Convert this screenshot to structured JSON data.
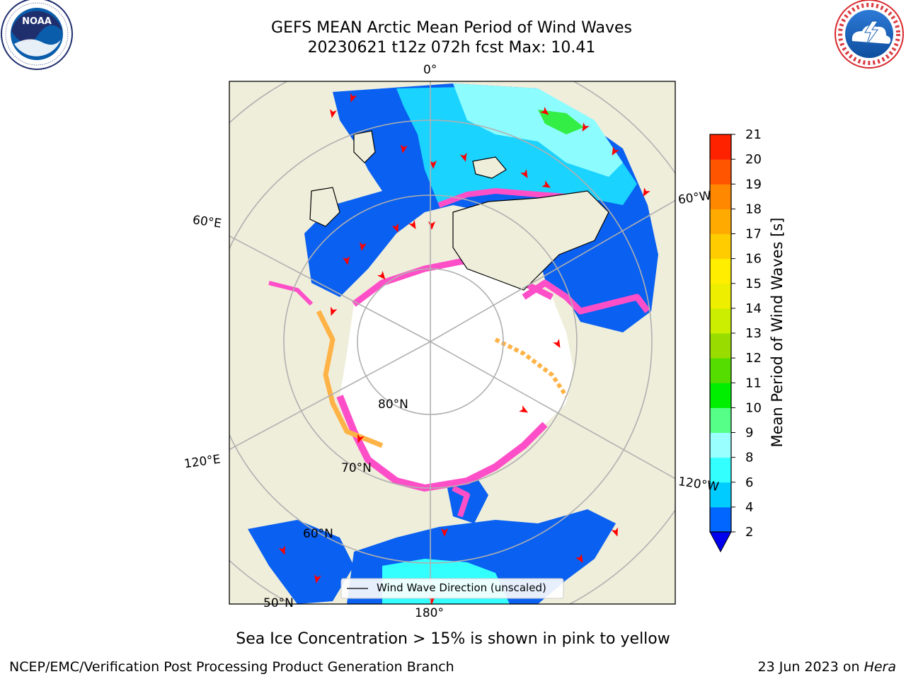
{
  "header": {
    "title_line1": "GEFS MEAN Arctic Mean Period of Wind Waves",
    "title_line2": "20230621 t12z 072h fcst   Max: 10.41"
  },
  "logos": {
    "left": {
      "name": "NOAA",
      "ring_text": "NATIONAL OCEANIC AND ATMOSPHERIC ADMINISTRATION · U.S. DEPARTMENT OF COMMERCE",
      "colors": {
        "ring": "#ffffff",
        "field": "#0a5dab",
        "badge": "#1f2f6e"
      }
    },
    "right": {
      "name": "NATIONAL WEATHER SERVICE",
      "colors": {
        "ring": "#d7262b",
        "field": "#1b5fb0",
        "cloud": "#ffffff"
      }
    }
  },
  "map": {
    "projection": "north-polar-stereographic",
    "colors": {
      "land": "#efeedb",
      "ocean_none": "#ffffff",
      "graticule": "#b0b0b0",
      "coast": "#000000",
      "arrow": "#ff0000",
      "ice_pink": "#ff4fc8",
      "ice_orange": "#ffb347"
    },
    "labels": {
      "lon_0": "0°",
      "lon_60e": "60°E",
      "lon_60w": "60°W",
      "lon_120e": "120°E",
      "lon_120w": "120°W",
      "lon_180": "180°",
      "lat_80": "80°N",
      "lat_70": "70°N",
      "lat_60": "60°N",
      "lat_50": "50°N"
    },
    "legend_label": "Wind Wave Direction (unscaled)"
  },
  "colorbar": {
    "label": "Mean Period of Wind Waves [s]",
    "ticks": [
      "2",
      "4",
      "6",
      "8",
      "9",
      "10",
      "11",
      "12",
      "13",
      "14",
      "15",
      "16",
      "17",
      "18",
      "19",
      "20",
      "21"
    ],
    "colors": [
      "#0066ff",
      "#00ccff",
      "#33ffff",
      "#99ffff",
      "#55ff88",
      "#00ee00",
      "#55dd00",
      "#99dd00",
      "#ccee00",
      "#eeee00",
      "#ffee00",
      "#ffcc00",
      "#ffaa00",
      "#ff8800",
      "#ff5500",
      "#ff2200"
    ],
    "extend_color": "#0000ee"
  },
  "caption": "Sea Ice Concentration > 15% is shown in pink to yellow",
  "footer": {
    "left": "NCEP/EMC/Verification Post Processing Product Generation Branch",
    "right_date": "23 Jun 2023 on ",
    "right_host": "Hera"
  }
}
